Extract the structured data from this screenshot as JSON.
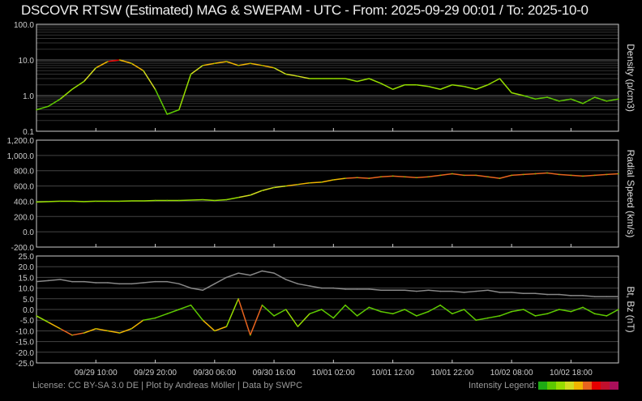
{
  "title": "DSCOVR RTSW (Estimated) MAG & SWEPAM - UTC - From: 2025-09-29 00:01  /  To: 2025-10-0",
  "footer": "License: CC BY-SA 3.0 DE | Plot by Andreas Möller | Data by SWPC",
  "legend_label": "Intensity Legend:",
  "legend_colors": [
    "#1eaa14",
    "#5cc800",
    "#96dc00",
    "#d2dc1e",
    "#f0b400",
    "#e8641e",
    "#e60000",
    "#c0102d",
    "#aa0f5a"
  ],
  "chart_data": [
    {
      "type": "line",
      "title": "Density",
      "ylabel": "Density (p/cm3)",
      "yscale": "log",
      "ylim": [
        0.1,
        100
      ],
      "yticks": [
        "0.1",
        "1.0",
        "10.0",
        "100.0"
      ],
      "x_hours": [
        0,
        2,
        4,
        6,
        8,
        10,
        12,
        14,
        16,
        18,
        20,
        22,
        24,
        26,
        28,
        30,
        32,
        34,
        36,
        38,
        40,
        42,
        44,
        46,
        48,
        50,
        52,
        54,
        56,
        58,
        60,
        62,
        64,
        66,
        68,
        70,
        72,
        74,
        76,
        78,
        80,
        82,
        84,
        86,
        88,
        90,
        92,
        94,
        96,
        98
      ],
      "series": [
        {
          "name": "Density",
          "values": [
            0.4,
            0.5,
            0.8,
            1.5,
            2.5,
            6,
            9,
            10,
            8,
            5,
            1.5,
            0.3,
            0.4,
            4,
            7,
            8,
            9,
            7,
            8,
            7,
            6,
            4,
            3.5,
            3,
            3,
            3,
            3,
            2.5,
            3,
            2.2,
            1.5,
            2,
            2,
            1.8,
            1.5,
            2,
            1.8,
            1.5,
            2,
            3,
            1.2,
            1,
            0.8,
            0.9,
            0.7,
            0.8,
            0.6,
            0.9,
            0.7,
            0.8
          ]
        }
      ]
    },
    {
      "type": "line",
      "title": "Radial Speed",
      "ylabel": "Radial Speed (km/s)",
      "ylim": [
        -200,
        1200
      ],
      "yticks": [
        "-200.0",
        "0.0",
        "200.0",
        "400.0",
        "600.0",
        "800.0",
        "1,000.0",
        "1,200.0"
      ],
      "series": [
        {
          "name": "Speed",
          "values": [
            390,
            395,
            400,
            400,
            395,
            400,
            400,
            400,
            405,
            405,
            410,
            410,
            410,
            415,
            420,
            410,
            420,
            450,
            480,
            540,
            580,
            600,
            620,
            640,
            650,
            680,
            700,
            710,
            700,
            720,
            730,
            720,
            710,
            720,
            740,
            760,
            740,
            740,
            720,
            700,
            740,
            750,
            760,
            770,
            750,
            740,
            730,
            740,
            750,
            760
          ]
        }
      ]
    },
    {
      "type": "line",
      "title": "Bt, Bz",
      "ylabel": "Bt, Bz (nT)",
      "ylim": [
        -25,
        25
      ],
      "yticks": [
        "-25.0",
        "-20.0",
        "-15.0",
        "-10.0",
        "-5.0",
        "0.0",
        "5.0",
        "10.0",
        "15.0",
        "20.0",
        "25.0"
      ],
      "series": [
        {
          "name": "Bt",
          "values": [
            13,
            13.5,
            14,
            13,
            13,
            12.5,
            12.5,
            12,
            12,
            12.5,
            13,
            13,
            12,
            10,
            9,
            12,
            15,
            17,
            16,
            18,
            17,
            14,
            12,
            11,
            10,
            10,
            9.5,
            9.5,
            9.5,
            9,
            9,
            9,
            8.5,
            9,
            8.5,
            8.5,
            8,
            8.5,
            9,
            8,
            8,
            7.5,
            7.5,
            7,
            7,
            6.5,
            6.5,
            6,
            6,
            6
          ]
        },
        {
          "name": "Bz",
          "values": [
            -3,
            -6,
            -9,
            -12,
            -11,
            -9,
            -10,
            -11,
            -9,
            -5,
            -4,
            -2,
            0,
            2,
            -5,
            -10,
            -8,
            5,
            -12,
            2,
            -3,
            0,
            -8,
            -2,
            0,
            -4,
            2,
            -3,
            1,
            -1,
            -2,
            0,
            -3,
            -1,
            2,
            -2,
            0,
            -5,
            -4,
            -3,
            -1,
            0,
            -3,
            -2,
            0,
            -1,
            1,
            -2,
            -3,
            0
          ]
        }
      ]
    }
  ],
  "xticks": [
    "09/29 10:00",
    "09/29 20:00",
    "09/30 06:00",
    "09/30 16:00",
    "10/01 02:00",
    "10/01 12:00",
    "10/01 22:00",
    "10/02 08:00",
    "10/02 18:00"
  ],
  "xtick_hours": [
    10,
    20,
    30,
    40,
    50,
    60,
    70,
    80,
    90
  ]
}
